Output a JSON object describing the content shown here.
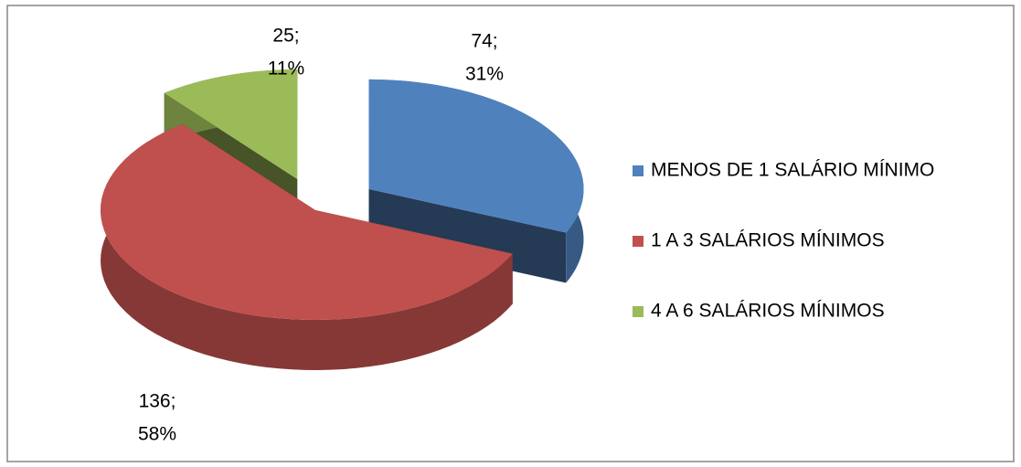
{
  "chart_data": {
    "type": "pie3d",
    "categories": [
      "MENOS DE 1 SALÁRIO MÍNIMO",
      "1 A 3 SALÁRIOS MÍNIMOS",
      "4 A 6 SALÁRIOS MÍNIMOS"
    ],
    "values": [
      74,
      136,
      25
    ],
    "value_labels": [
      "74;",
      "136;",
      "25;"
    ],
    "percents": [
      31,
      58,
      11
    ],
    "percent_labels": [
      "31%",
      "58%",
      "11%"
    ],
    "colors": [
      "#4f81bd",
      "#c0504d",
      "#9bbb59"
    ],
    "legend": "right"
  }
}
